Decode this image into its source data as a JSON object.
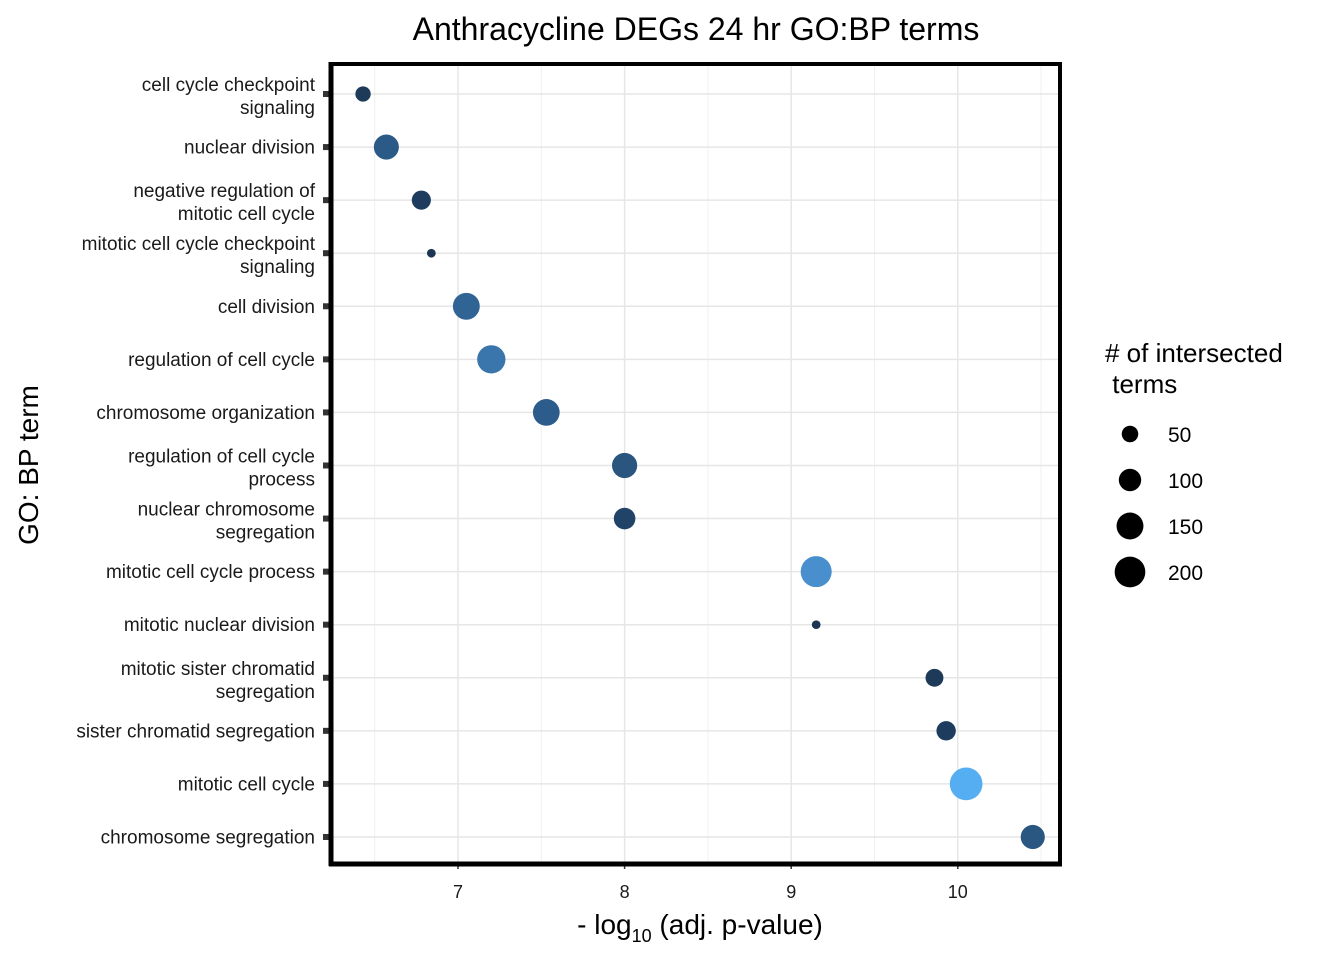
{
  "chart_data": {
    "type": "scatter",
    "title": "Anthracycline DEGs 24 hr GO:BP terms",
    "ylabel": "GO: BP term",
    "xlabel": {
      "prefix": "- log",
      "subscript": "10",
      "suffix": " (adj. p-value)"
    },
    "xlim": [
      6.2,
      10.6
    ],
    "xticks": [
      7,
      8,
      9,
      10
    ],
    "grid": true,
    "legend": {
      "title_lines": [
        "# of intersected",
        " terms"
      ],
      "placement": "right",
      "entries": [
        {
          "label": "50",
          "value": 50
        },
        {
          "label": "100",
          "value": 100
        },
        {
          "label": "150",
          "value": 150
        },
        {
          "label": "200",
          "value": 200
        }
      ]
    },
    "points": [
      {
        "term": [
          "cell cycle checkpoint",
          "signaling"
        ],
        "x": 6.43,
        "count": 42,
        "color": "#1d3a58"
      },
      {
        "term": [
          "nuclear division"
        ],
        "x": 6.57,
        "count": 128,
        "color": "#2b5a87"
      },
      {
        "term": [
          "negative regulation of",
          "mitotic cell cycle"
        ],
        "x": 6.78,
        "count": 70,
        "color": "#1e3d5e"
      },
      {
        "term": [
          "mitotic cell cycle checkpoint",
          "signaling"
        ],
        "x": 6.84,
        "count": 10,
        "color": "#1b3552"
      },
      {
        "term": [
          "cell division"
        ],
        "x": 7.05,
        "count": 150,
        "color": "#2f6494"
      },
      {
        "term": [
          "regulation of cell cycle"
        ],
        "x": 7.2,
        "count": 168,
        "color": "#3a76ab"
      },
      {
        "term": [
          "chromosome organization"
        ],
        "x": 7.53,
        "count": 148,
        "color": "#2c5c8b"
      },
      {
        "term": [
          "regulation of cell cycle",
          "process"
        ],
        "x": 8.0,
        "count": 130,
        "color": "#29557f"
      },
      {
        "term": [
          "nuclear chromosome",
          "segregation"
        ],
        "x": 8.0,
        "count": 92,
        "color": "#214368"
      },
      {
        "term": [
          "mitotic cell cycle process"
        ],
        "x": 9.15,
        "count": 205,
        "color": "#4a8fcd"
      },
      {
        "term": [
          "mitotic nuclear division"
        ],
        "x": 9.15,
        "count": 10,
        "color": "#1b3552"
      },
      {
        "term": [
          "mitotic sister chromatid",
          "segregation"
        ],
        "x": 9.86,
        "count": 60,
        "color": "#1d3a58"
      },
      {
        "term": [
          "sister chromatid segregation"
        ],
        "x": 9.93,
        "count": 72,
        "color": "#1e3d5e"
      },
      {
        "term": [
          "mitotic cell cycle"
        ],
        "x": 10.05,
        "count": 230,
        "color": "#56aef2"
      },
      {
        "term": [
          "chromosome segregation"
        ],
        "x": 10.45,
        "count": 118,
        "color": "#2a5682"
      }
    ]
  }
}
